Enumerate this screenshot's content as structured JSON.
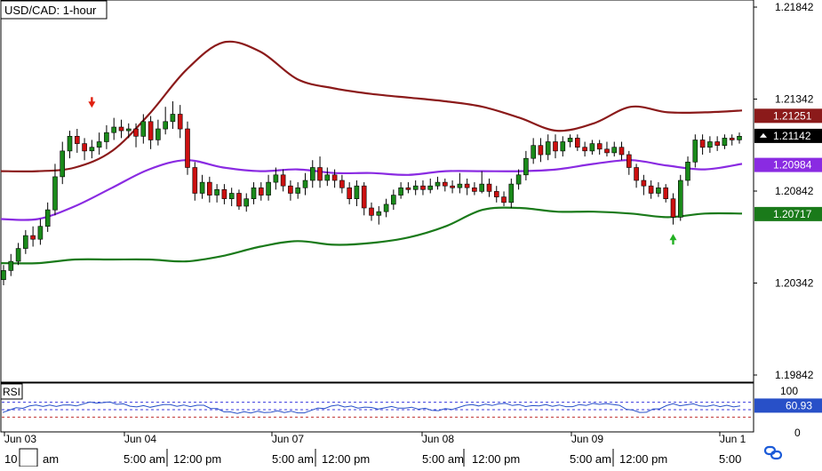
{
  "title": "USD/CAD: 1-hour",
  "colors": {
    "background": "#ffffff",
    "bull": "#1a8a1a",
    "bear": "#cc1010",
    "upper_band": "#8b1a1a",
    "middle_band": "#8a2be2",
    "lower_band": "#1a7a1a",
    "rsi_line": "#2850c8",
    "rsi_level": "#3a3adf",
    "rsi_low": "#c03030",
    "grid": "#000000",
    "signal_down": "#e02010",
    "signal_up": "#22b022"
  },
  "price_axis": {
    "ticks": [
      "1.21842",
      "1.21342",
      "1.20842",
      "1.20342",
      "1.19842"
    ],
    "min": 1.19842,
    "max": 1.21842
  },
  "badges": [
    {
      "label": "1.21251",
      "value": 1.21251,
      "color": "#8b1a1a",
      "text_color": "#ffffff"
    },
    {
      "label": "1.21142",
      "value": 1.21142,
      "color": "#000000",
      "text_color": "#ffffff"
    },
    {
      "label": "1.20984",
      "value": 1.20984,
      "color": "#8a2be2",
      "text_color": "#ffffff"
    },
    {
      "label": "1.20717",
      "value": 1.20717,
      "color": "#1a7a1a",
      "text_color": "#ffffff"
    }
  ],
  "rsi_panel": {
    "label": "RSI",
    "ticks": [
      "100",
      "0"
    ],
    "value_label": "60.93",
    "value_color": "#2850c8",
    "levels": [
      70,
      50,
      30
    ]
  },
  "x_axis": {
    "date_labels": [
      "Jun 03",
      "Jun 04",
      "Jun 07",
      "Jun 08",
      "Jun 09",
      "Jun 1"
    ],
    "time_labels": [
      "10",
      "am",
      "5:00 am",
      "12:00 pm",
      "5:00 am",
      "12:00 pm",
      "5:00 am",
      "12:00 pm",
      "5:00 am",
      "12:00 pm",
      "5:00"
    ]
  },
  "link_icon": "chain-link-icon",
  "chart_data": {
    "type": "candlestick",
    "title": "USD/CAD: 1-hour",
    "ylim": [
      1.19842,
      1.21842
    ],
    "series": [
      {
        "name": "Upper Bollinger Band",
        "values": [
          1.2095,
          1.2095,
          1.2097,
          1.2106,
          1.2126,
          1.215,
          1.2165,
          1.216,
          1.2145,
          1.214,
          1.2137,
          1.2135,
          1.2133,
          1.213,
          1.2124,
          1.2117,
          1.2121,
          1.213,
          1.2127,
          1.2127,
          1.2128
        ]
      },
      {
        "name": "Middle Band",
        "values": [
          1.2069,
          1.2069,
          1.2076,
          1.2086,
          1.2096,
          1.2101,
          1.2097,
          1.2095,
          1.2096,
          1.2094,
          1.2094,
          1.2093,
          1.2095,
          1.2095,
          1.2095,
          1.2096,
          1.2099,
          1.2101,
          1.2098,
          1.2096,
          1.2099
        ]
      },
      {
        "name": "Lower Bollinger Band",
        "values": [
          1.2045,
          1.2045,
          1.2047,
          1.2047,
          1.2047,
          1.2046,
          1.2049,
          1.2054,
          1.2057,
          1.2055,
          1.2056,
          1.2059,
          1.2065,
          1.2074,
          1.2075,
          1.2073,
          1.2073,
          1.2072,
          1.207,
          1.2072,
          1.2072
        ]
      },
      {
        "name": "RSI",
        "values": [
          46,
          60,
          62,
          70,
          60,
          60,
          60,
          40,
          45,
          45,
          60,
          55,
          55,
          50,
          60,
          65,
          60,
          60,
          70,
          40,
          65,
          60,
          60
        ]
      }
    ],
    "candles": [
      [
        1.2036,
        1.2041,
        1.2044,
        1.2033
      ],
      [
        1.2041,
        1.2046,
        1.205,
        1.2038
      ],
      [
        1.2046,
        1.2053,
        1.2056,
        1.2044
      ],
      [
        1.2053,
        1.206,
        1.2063,
        1.205
      ],
      [
        1.206,
        1.2058,
        1.2065,
        1.2054
      ],
      [
        1.2058,
        1.2065,
        1.2069,
        1.2055
      ],
      [
        1.2065,
        1.2074,
        1.2078,
        1.2062
      ],
      [
        1.2074,
        1.2092,
        1.2099,
        1.2071
      ],
      [
        1.2092,
        1.2106,
        1.2111,
        1.2088
      ],
      [
        1.2106,
        1.2114,
        1.2117,
        1.2102
      ],
      [
        1.2114,
        1.211,
        1.2118,
        1.2105
      ],
      [
        1.211,
        1.2106,
        1.2113,
        1.2101
      ],
      [
        1.2106,
        1.2108,
        1.2112,
        1.2102
      ],
      [
        1.2108,
        1.2111,
        1.2116,
        1.2104
      ],
      [
        1.2111,
        1.2116,
        1.212,
        1.2107
      ],
      [
        1.2116,
        1.2119,
        1.2124,
        1.2112
      ],
      [
        1.2119,
        1.2117,
        1.2123,
        1.2113
      ],
      [
        1.2117,
        1.2118,
        1.2121,
        1.2113
      ],
      [
        1.2118,
        1.2114,
        1.2121,
        1.2108
      ],
      [
        1.2114,
        1.2122,
        1.2126,
        1.211
      ],
      [
        1.2122,
        1.2112,
        1.2125,
        1.2107
      ],
      [
        1.2112,
        1.2118,
        1.2123,
        1.2109
      ],
      [
        1.2118,
        1.2122,
        1.213,
        1.2115
      ],
      [
        1.2122,
        1.2126,
        1.2133,
        1.2118
      ],
      [
        1.2126,
        1.2118,
        1.2131,
        1.2113
      ],
      [
        1.2118,
        1.2097,
        1.2122,
        1.2093
      ],
      [
        1.2097,
        1.2083,
        1.21,
        1.2079
      ],
      [
        1.2083,
        1.2089,
        1.2093,
        1.208
      ],
      [
        1.2089,
        1.2082,
        1.2092,
        1.2078
      ],
      [
        1.2082,
        1.2085,
        1.2088,
        1.2078
      ],
      [
        1.2085,
        1.208,
        1.2088,
        1.2077
      ],
      [
        1.208,
        1.2083,
        1.2086,
        1.2076
      ],
      [
        1.2083,
        1.2076,
        1.2085,
        1.2074
      ],
      [
        1.2076,
        1.208,
        1.2083,
        1.2073
      ],
      [
        1.208,
        1.2086,
        1.2089,
        1.2077
      ],
      [
        1.2086,
        1.2082,
        1.2089,
        1.2079
      ],
      [
        1.2082,
        1.2089,
        1.2093,
        1.2079
      ],
      [
        1.2089,
        1.2093,
        1.2097,
        1.2085
      ],
      [
        1.2093,
        1.2087,
        1.2096,
        1.2084
      ],
      [
        1.2087,
        1.2083,
        1.209,
        1.2079
      ],
      [
        1.2083,
        1.2086,
        1.2089,
        1.208
      ],
      [
        1.2086,
        1.209,
        1.2094,
        1.2082
      ],
      [
        1.209,
        1.2097,
        1.2101,
        1.2086
      ],
      [
        1.2097,
        1.209,
        1.2103,
        1.2086
      ],
      [
        1.209,
        1.2093,
        1.2097,
        1.2087
      ],
      [
        1.2093,
        1.209,
        1.2096,
        1.2086
      ],
      [
        1.209,
        1.2086,
        1.2093,
        1.2083
      ],
      [
        1.2086,
        1.208,
        1.2089,
        1.2077
      ],
      [
        1.208,
        1.2087,
        1.209,
        1.2076
      ],
      [
        1.2087,
        1.2075,
        1.2089,
        1.2071
      ],
      [
        1.2075,
        1.2071,
        1.2078,
        1.2068
      ],
      [
        1.2071,
        1.2073,
        1.2076,
        1.2066
      ],
      [
        1.2073,
        1.2077,
        1.208,
        1.207
      ],
      [
        1.2077,
        1.2082,
        1.2085,
        1.2074
      ],
      [
        1.2082,
        1.2086,
        1.2089,
        1.208
      ],
      [
        1.2086,
        1.2085,
        1.2089,
        1.2083
      ],
      [
        1.2085,
        1.2087,
        1.209,
        1.2082
      ],
      [
        1.2087,
        1.2085,
        1.209,
        1.2082
      ],
      [
        1.2085,
        1.2087,
        1.2091,
        1.2083
      ],
      [
        1.2087,
        1.2089,
        1.2092,
        1.2085
      ],
      [
        1.2089,
        1.2087,
        1.2091,
        1.2084
      ],
      [
        1.2087,
        1.2086,
        1.209,
        1.2083
      ],
      [
        1.2086,
        1.2088,
        1.2094,
        1.2083
      ],
      [
        1.2088,
        1.2086,
        1.2091,
        1.2082
      ],
      [
        1.2086,
        1.2084,
        1.2089,
        1.2082
      ],
      [
        1.2084,
        1.2088,
        1.2095,
        1.2083
      ],
      [
        1.2088,
        1.2084,
        1.2091,
        1.2081
      ],
      [
        1.2084,
        1.2081,
        1.2087,
        1.2078
      ],
      [
        1.2081,
        1.2078,
        1.2084,
        1.2076
      ],
      [
        1.2078,
        1.2088,
        1.2091,
        1.2075
      ],
      [
        1.2088,
        1.2093,
        1.2096,
        1.2085
      ],
      [
        1.2093,
        1.2102,
        1.2106,
        1.209
      ],
      [
        1.2102,
        1.2109,
        1.2113,
        1.2099
      ],
      [
        1.2109,
        1.2104,
        1.2113,
        1.21
      ],
      [
        1.2104,
        1.2111,
        1.2115,
        1.2101
      ],
      [
        1.2111,
        1.2106,
        1.2115,
        1.2102
      ],
      [
        1.2106,
        1.2111,
        1.2114,
        1.2103
      ],
      [
        1.2111,
        1.2113,
        1.2115,
        1.2108
      ],
      [
        1.2113,
        1.2108,
        1.2115,
        1.2106
      ],
      [
        1.2108,
        1.2106,
        1.2111,
        1.2103
      ],
      [
        1.2106,
        1.211,
        1.2112,
        1.2104
      ],
      [
        1.211,
        1.2107,
        1.2112,
        1.2104
      ],
      [
        1.2107,
        1.2105,
        1.2111,
        1.2103
      ],
      [
        1.2105,
        1.2108,
        1.2111,
        1.2103
      ],
      [
        1.2108,
        1.2104,
        1.2111,
        1.2101
      ],
      [
        1.2104,
        1.2097,
        1.2106,
        1.2093
      ],
      [
        1.2097,
        1.209,
        1.2099,
        1.2086
      ],
      [
        1.209,
        1.2087,
        1.2093,
        1.2082
      ],
      [
        1.2087,
        1.2083,
        1.209,
        1.208
      ],
      [
        1.2083,
        1.2086,
        1.2089,
        1.2081
      ],
      [
        1.2086,
        1.208,
        1.2088,
        1.2078
      ],
      [
        1.208,
        1.207,
        1.2083,
        1.2066
      ],
      [
        1.207,
        1.209,
        1.2093,
        1.2068
      ],
      [
        1.209,
        1.21,
        1.2103,
        1.2087
      ],
      [
        1.21,
        1.2112,
        1.2115,
        1.2097
      ],
      [
        1.2112,
        1.2108,
        1.2115,
        1.2104
      ],
      [
        1.2108,
        1.2111,
        1.2114,
        1.2105
      ],
      [
        1.2111,
        1.2109,
        1.2114,
        1.2106
      ],
      [
        1.2109,
        1.2113,
        1.2115,
        1.2107
      ],
      [
        1.2113,
        1.2112,
        1.2115,
        1.2109
      ],
      [
        1.2112,
        1.2114,
        1.2116,
        1.211
      ]
    ]
  }
}
